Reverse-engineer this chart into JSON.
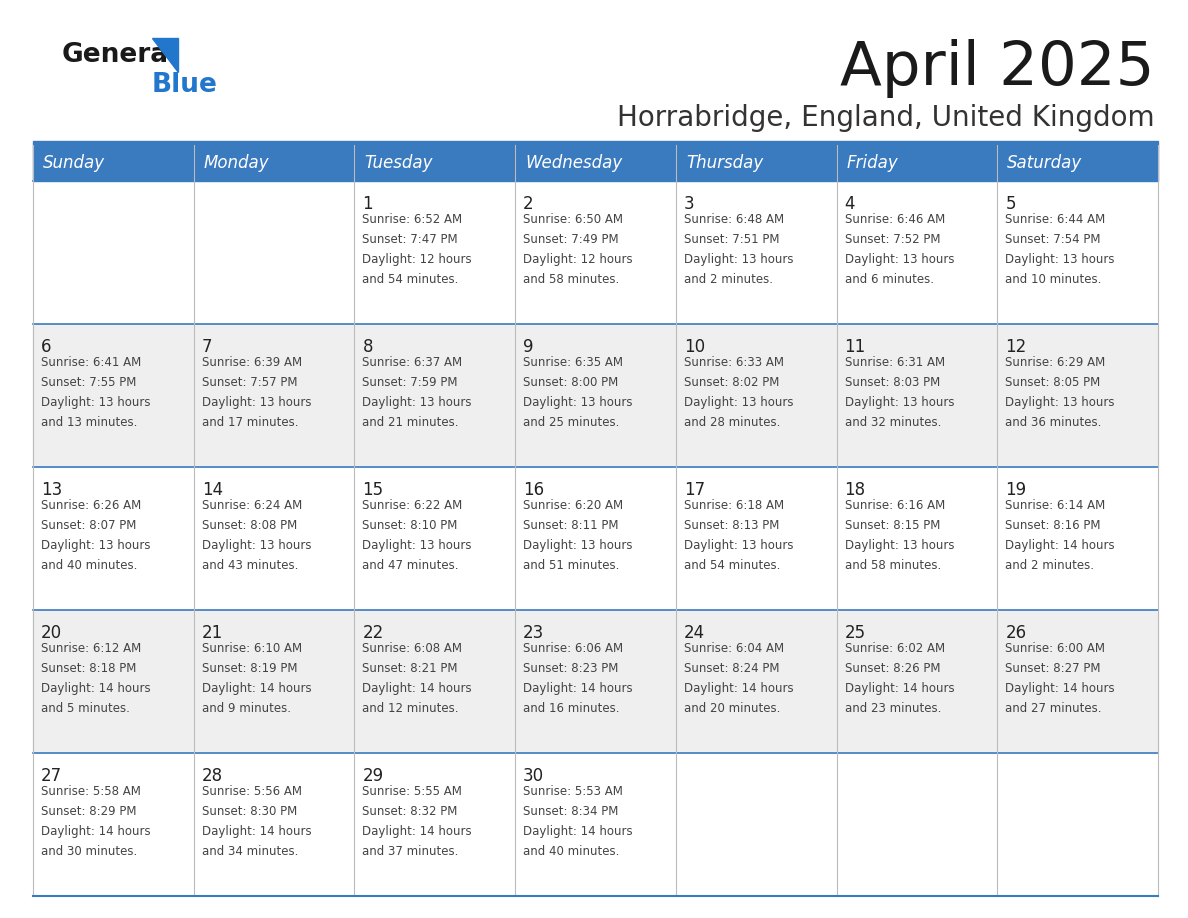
{
  "title": "April 2025",
  "subtitle": "Horrabridge, England, United Kingdom",
  "header_bg_color": "#3a7abf",
  "header_text_color": "#ffffff",
  "day_names": [
    "Sunday",
    "Monday",
    "Tuesday",
    "Wednesday",
    "Thursday",
    "Friday",
    "Saturday"
  ],
  "row_bg_even": "#efefef",
  "row_bg_odd": "#ffffff",
  "border_color": "#3a7abf",
  "text_color": "#444444",
  "date_color": "#222222",
  "weeks": [
    [
      {
        "day": null,
        "sunrise": null,
        "sunset": null,
        "daylight": null
      },
      {
        "day": null,
        "sunrise": null,
        "sunset": null,
        "daylight": null
      },
      {
        "day": 1,
        "sunrise": "6:52 AM",
        "sunset": "7:47 PM",
        "daylight": "12 hours and 54 minutes."
      },
      {
        "day": 2,
        "sunrise": "6:50 AM",
        "sunset": "7:49 PM",
        "daylight": "12 hours and 58 minutes."
      },
      {
        "day": 3,
        "sunrise": "6:48 AM",
        "sunset": "7:51 PM",
        "daylight": "13 hours and 2 minutes."
      },
      {
        "day": 4,
        "sunrise": "6:46 AM",
        "sunset": "7:52 PM",
        "daylight": "13 hours and 6 minutes."
      },
      {
        "day": 5,
        "sunrise": "6:44 AM",
        "sunset": "7:54 PM",
        "daylight": "13 hours and 10 minutes."
      }
    ],
    [
      {
        "day": 6,
        "sunrise": "6:41 AM",
        "sunset": "7:55 PM",
        "daylight": "13 hours and 13 minutes."
      },
      {
        "day": 7,
        "sunrise": "6:39 AM",
        "sunset": "7:57 PM",
        "daylight": "13 hours and 17 minutes."
      },
      {
        "day": 8,
        "sunrise": "6:37 AM",
        "sunset": "7:59 PM",
        "daylight": "13 hours and 21 minutes."
      },
      {
        "day": 9,
        "sunrise": "6:35 AM",
        "sunset": "8:00 PM",
        "daylight": "13 hours and 25 minutes."
      },
      {
        "day": 10,
        "sunrise": "6:33 AM",
        "sunset": "8:02 PM",
        "daylight": "13 hours and 28 minutes."
      },
      {
        "day": 11,
        "sunrise": "6:31 AM",
        "sunset": "8:03 PM",
        "daylight": "13 hours and 32 minutes."
      },
      {
        "day": 12,
        "sunrise": "6:29 AM",
        "sunset": "8:05 PM",
        "daylight": "13 hours and 36 minutes."
      }
    ],
    [
      {
        "day": 13,
        "sunrise": "6:26 AM",
        "sunset": "8:07 PM",
        "daylight": "13 hours and 40 minutes."
      },
      {
        "day": 14,
        "sunrise": "6:24 AM",
        "sunset": "8:08 PM",
        "daylight": "13 hours and 43 minutes."
      },
      {
        "day": 15,
        "sunrise": "6:22 AM",
        "sunset": "8:10 PM",
        "daylight": "13 hours and 47 minutes."
      },
      {
        "day": 16,
        "sunrise": "6:20 AM",
        "sunset": "8:11 PM",
        "daylight": "13 hours and 51 minutes."
      },
      {
        "day": 17,
        "sunrise": "6:18 AM",
        "sunset": "8:13 PM",
        "daylight": "13 hours and 54 minutes."
      },
      {
        "day": 18,
        "sunrise": "6:16 AM",
        "sunset": "8:15 PM",
        "daylight": "13 hours and 58 minutes."
      },
      {
        "day": 19,
        "sunrise": "6:14 AM",
        "sunset": "8:16 PM",
        "daylight": "14 hours and 2 minutes."
      }
    ],
    [
      {
        "day": 20,
        "sunrise": "6:12 AM",
        "sunset": "8:18 PM",
        "daylight": "14 hours and 5 minutes."
      },
      {
        "day": 21,
        "sunrise": "6:10 AM",
        "sunset": "8:19 PM",
        "daylight": "14 hours and 9 minutes."
      },
      {
        "day": 22,
        "sunrise": "6:08 AM",
        "sunset": "8:21 PM",
        "daylight": "14 hours and 12 minutes."
      },
      {
        "day": 23,
        "sunrise": "6:06 AM",
        "sunset": "8:23 PM",
        "daylight": "14 hours and 16 minutes."
      },
      {
        "day": 24,
        "sunrise": "6:04 AM",
        "sunset": "8:24 PM",
        "daylight": "14 hours and 20 minutes."
      },
      {
        "day": 25,
        "sunrise": "6:02 AM",
        "sunset": "8:26 PM",
        "daylight": "14 hours and 23 minutes."
      },
      {
        "day": 26,
        "sunrise": "6:00 AM",
        "sunset": "8:27 PM",
        "daylight": "14 hours and 27 minutes."
      }
    ],
    [
      {
        "day": 27,
        "sunrise": "5:58 AM",
        "sunset": "8:29 PM",
        "daylight": "14 hours and 30 minutes."
      },
      {
        "day": 28,
        "sunrise": "5:56 AM",
        "sunset": "8:30 PM",
        "daylight": "14 hours and 34 minutes."
      },
      {
        "day": 29,
        "sunrise": "5:55 AM",
        "sunset": "8:32 PM",
        "daylight": "14 hours and 37 minutes."
      },
      {
        "day": 30,
        "sunrise": "5:53 AM",
        "sunset": "8:34 PM",
        "daylight": "14 hours and 40 minutes."
      },
      {
        "day": null,
        "sunrise": null,
        "sunset": null,
        "daylight": null
      },
      {
        "day": null,
        "sunrise": null,
        "sunset": null,
        "daylight": null
      },
      {
        "day": null,
        "sunrise": null,
        "sunset": null,
        "daylight": null
      }
    ]
  ]
}
